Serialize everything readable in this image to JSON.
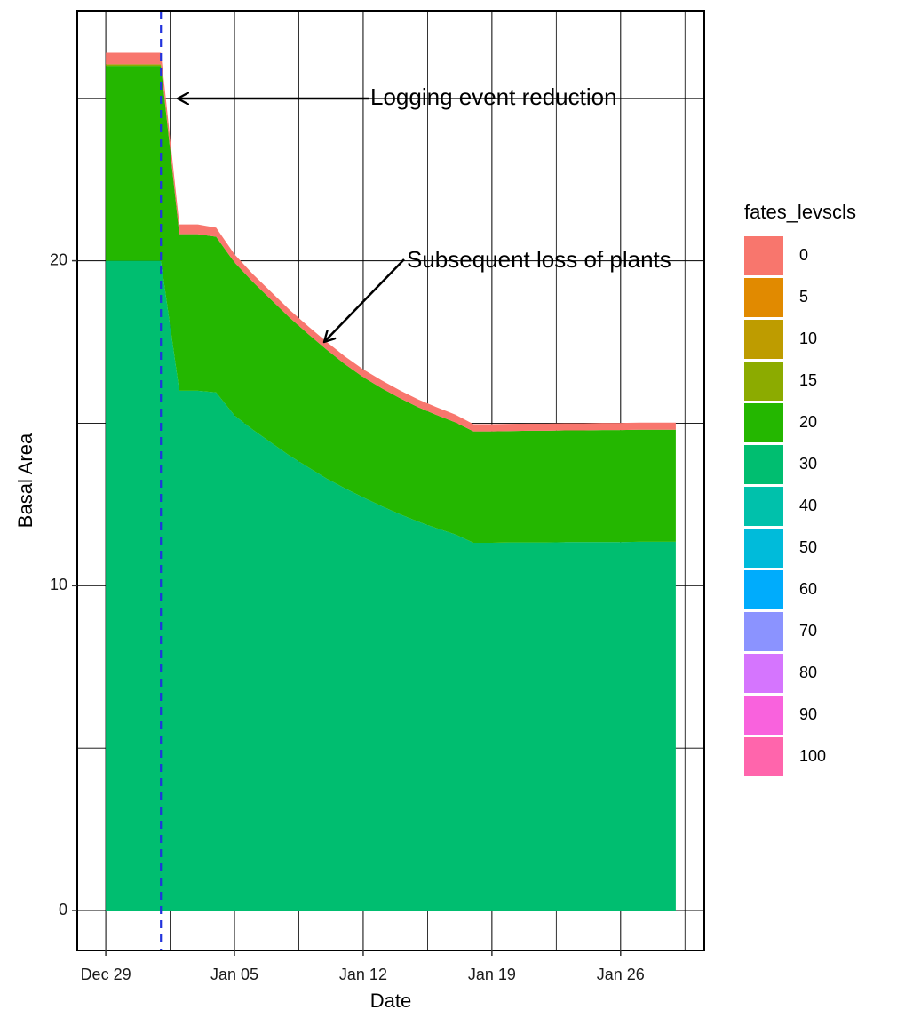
{
  "chart_data": {
    "type": "stacked_area",
    "x_label": "Date",
    "y_label": "Basal Area",
    "legend_title": "fates_levscls",
    "legend_position": "right",
    "grid": true,
    "x": [
      "Dec 29",
      "Dec 30",
      "Dec 31",
      "Jan 01",
      "Jan 02",
      "Jan 03",
      "Jan 04",
      "Jan 05",
      "Jan 06",
      "Jan 07",
      "Jan 08",
      "Jan 09",
      "Jan 10",
      "Jan 11",
      "Jan 12",
      "Jan 13",
      "Jan 14",
      "Jan 15",
      "Jan 16",
      "Jan 17",
      "Jan 18",
      "Jan 19",
      "Jan 20",
      "Jan 21",
      "Jan 22",
      "Jan 23",
      "Jan 24",
      "Jan 25",
      "Jan 26",
      "Jan 27",
      "Jan 28",
      "Jan 29"
    ],
    "xticks": [
      "Dec 29",
      "Jan 05",
      "Jan 12",
      "Jan 19",
      "Jan 26"
    ],
    "vline_x": "Jan 01",
    "ylim": [
      -1.23,
      27.7
    ],
    "yticks": [
      0,
      10,
      20
    ],
    "y_minor_ticks": [
      5,
      15,
      25
    ],
    "annotations": [
      "Logging event reduction",
      "Subsequent loss of plants"
    ],
    "series": [
      {
        "name": "0",
        "color": "#F8766D",
        "values": [
          0.35,
          0.35,
          0.35,
          0.35,
          0.3,
          0.3,
          0.28,
          0.25,
          0.24,
          0.24,
          0.24,
          0.24,
          0.24,
          0.24,
          0.24,
          0.24,
          0.24,
          0.24,
          0.24,
          0.24,
          0.22,
          0.22,
          0.22,
          0.22,
          0.22,
          0.22,
          0.22,
          0.22,
          0.22,
          0.22,
          0.22,
          0.22
        ]
      },
      {
        "name": "5",
        "color": "#E18A00",
        "values": [
          0,
          0,
          0,
          0,
          0,
          0,
          0,
          0,
          0,
          0,
          0,
          0,
          0,
          0,
          0,
          0,
          0,
          0,
          0,
          0,
          0,
          0,
          0,
          0,
          0,
          0,
          0,
          0,
          0,
          0,
          0,
          0
        ]
      },
      {
        "name": "10",
        "color": "#BE9C00",
        "values": [
          0,
          0,
          0,
          0,
          0,
          0,
          0,
          0,
          0,
          0,
          0,
          0,
          0,
          0,
          0,
          0,
          0,
          0,
          0,
          0,
          0,
          0,
          0,
          0,
          0,
          0,
          0,
          0,
          0,
          0,
          0,
          0
        ]
      },
      {
        "name": "15",
        "color": "#8CAB00",
        "values": [
          0.05,
          0.05,
          0.05,
          0.05,
          0,
          0,
          0,
          0,
          0,
          0,
          0,
          0,
          0,
          0,
          0,
          0,
          0,
          0,
          0,
          0,
          0,
          0,
          0,
          0,
          0,
          0,
          0,
          0,
          0,
          0,
          0,
          0
        ]
      },
      {
        "name": "20",
        "color": "#24B700",
        "values": [
          6.0,
          6.0,
          6.0,
          6.0,
          4.82,
          4.82,
          4.79,
          4.71,
          4.55,
          4.4,
          4.25,
          4.1,
          3.97,
          3.82,
          3.7,
          3.63,
          3.57,
          3.52,
          3.48,
          3.45,
          3.43,
          3.43,
          3.43,
          3.44,
          3.44,
          3.44,
          3.44,
          3.45,
          3.45,
          3.45,
          3.45,
          3.45
        ]
      },
      {
        "name": "30",
        "color": "#00BE70",
        "values": [
          20,
          20,
          20,
          20,
          16.0,
          16.0,
          15.95,
          15.24,
          14.8,
          14.4,
          14.0,
          13.65,
          13.3,
          13.0,
          12.72,
          12.45,
          12.2,
          11.97,
          11.77,
          11.58,
          11.32,
          11.32,
          11.33,
          11.33,
          11.33,
          11.34,
          11.34,
          11.34,
          11.34,
          11.35,
          11.35,
          11.35
        ]
      },
      {
        "name": "40",
        "color": "#00C1AB",
        "values": [
          0,
          0,
          0,
          0,
          0,
          0,
          0,
          0,
          0,
          0,
          0,
          0,
          0,
          0,
          0,
          0,
          0,
          0,
          0,
          0,
          0,
          0,
          0,
          0,
          0,
          0,
          0,
          0,
          0,
          0,
          0,
          0
        ]
      },
      {
        "name": "50",
        "color": "#00BBDA",
        "values": [
          0,
          0,
          0,
          0,
          0,
          0,
          0,
          0,
          0,
          0,
          0,
          0,
          0,
          0,
          0,
          0,
          0,
          0,
          0,
          0,
          0,
          0,
          0,
          0,
          0,
          0,
          0,
          0,
          0,
          0,
          0,
          0
        ]
      },
      {
        "name": "60",
        "color": "#00ACFC",
        "values": [
          0,
          0,
          0,
          0,
          0,
          0,
          0,
          0,
          0,
          0,
          0,
          0,
          0,
          0,
          0,
          0,
          0,
          0,
          0,
          0,
          0,
          0,
          0,
          0,
          0,
          0,
          0,
          0,
          0,
          0,
          0,
          0
        ]
      },
      {
        "name": "70",
        "color": "#8B93FF",
        "values": [
          0,
          0,
          0,
          0,
          0,
          0,
          0,
          0,
          0,
          0,
          0,
          0,
          0,
          0,
          0,
          0,
          0,
          0,
          0,
          0,
          0,
          0,
          0,
          0,
          0,
          0,
          0,
          0,
          0,
          0,
          0,
          0
        ]
      },
      {
        "name": "80",
        "color": "#D575FE",
        "values": [
          0,
          0,
          0,
          0,
          0,
          0,
          0,
          0,
          0,
          0,
          0,
          0,
          0,
          0,
          0,
          0,
          0,
          0,
          0,
          0,
          0,
          0,
          0,
          0,
          0,
          0,
          0,
          0,
          0,
          0,
          0,
          0
        ]
      },
      {
        "name": "90",
        "color": "#F962DD",
        "values": [
          0,
          0,
          0,
          0,
          0,
          0,
          0,
          0,
          0,
          0,
          0,
          0,
          0,
          0,
          0,
          0,
          0,
          0,
          0,
          0,
          0,
          0,
          0,
          0,
          0,
          0,
          0,
          0,
          0,
          0,
          0,
          0
        ]
      },
      {
        "name": "100",
        "color": "#FF65AC",
        "values": [
          0,
          0,
          0,
          0,
          0,
          0,
          0,
          0,
          0,
          0,
          0,
          0,
          0,
          0,
          0,
          0,
          0,
          0,
          0,
          0,
          0,
          0,
          0,
          0,
          0,
          0,
          0,
          0,
          0,
          0,
          0,
          0
        ]
      }
    ]
  }
}
